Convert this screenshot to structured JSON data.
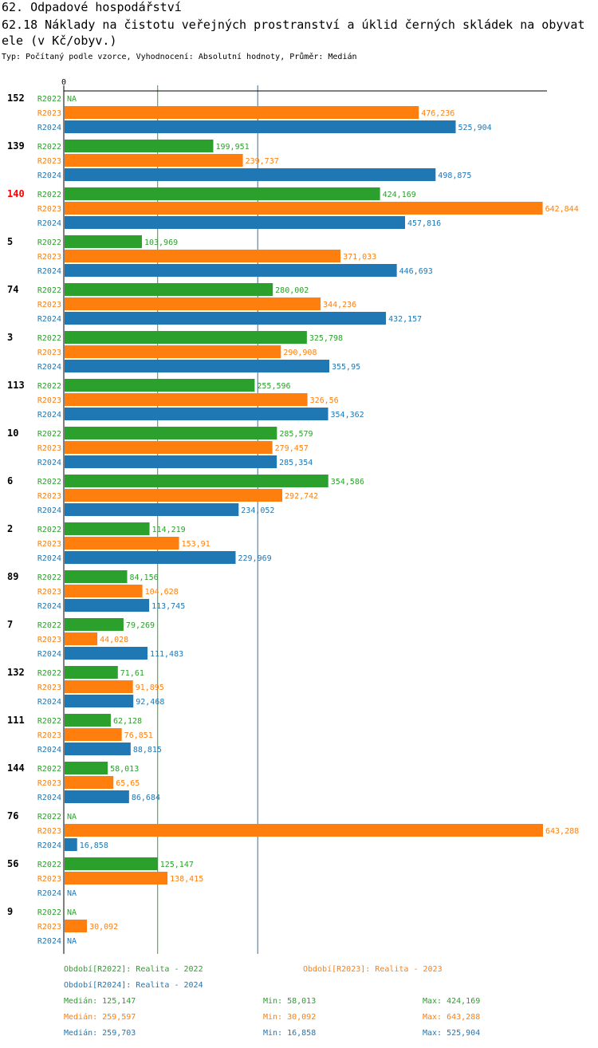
{
  "header": {
    "title1": "62. Odpadové hospodářství",
    "title2_line1": "62.18 Náklady na čistotu veřejných prostranství a úklid černých skládek na obyvat",
    "title2_line2": "ele (v Kč/obyv.)",
    "subtitle": "Typ: Počítaný podle vzorce, Vyhodnocení: Absolutní hodnoty, Průměr: Medián"
  },
  "colors": {
    "R2022": "#2ca02c",
    "R2023": "#ff7f0e",
    "R2024": "#1f77b4",
    "highlight": "#ff0000",
    "text": "#000000"
  },
  "chart_data": {
    "type": "bar",
    "orientation": "horizontal",
    "axis_zero_label": "0",
    "xlim": [
      0,
      643.288
    ],
    "na_label": "NA",
    "series_labels": [
      "R2022",
      "R2023",
      "R2024"
    ],
    "groups": [
      {
        "label": "152",
        "highlight": false,
        "values": [
          null,
          476.236,
          525.904
        ],
        "texts": [
          "NA",
          "476,236",
          "525,904"
        ]
      },
      {
        "label": "139",
        "highlight": false,
        "values": [
          199.951,
          239.737,
          498.875
        ],
        "texts": [
          "199,951",
          "239,737",
          "498,875"
        ]
      },
      {
        "label": "140",
        "highlight": true,
        "values": [
          424.169,
          642.844,
          457.816
        ],
        "texts": [
          "424,169",
          "642,844",
          "457,816"
        ]
      },
      {
        "label": "5",
        "highlight": false,
        "values": [
          103.969,
          371.033,
          446.693
        ],
        "texts": [
          "103,969",
          "371,033",
          "446,693"
        ]
      },
      {
        "label": "74",
        "highlight": false,
        "values": [
          280.002,
          344.236,
          432.157
        ],
        "texts": [
          "280,002",
          "344,236",
          "432,157"
        ]
      },
      {
        "label": "3",
        "highlight": false,
        "values": [
          325.798,
          290.908,
          355.95
        ],
        "texts": [
          "325,798",
          "290,908",
          "355,95"
        ]
      },
      {
        "label": "113",
        "highlight": false,
        "values": [
          255.596,
          326.56,
          354.362
        ],
        "texts": [
          "255,596",
          "326,56",
          "354,362"
        ]
      },
      {
        "label": "10",
        "highlight": false,
        "values": [
          285.579,
          279.457,
          285.354
        ],
        "texts": [
          "285,579",
          "279,457",
          "285,354"
        ]
      },
      {
        "label": "6",
        "highlight": false,
        "values": [
          354.586,
          292.742,
          234.052
        ],
        "texts": [
          "354,586",
          "292,742",
          "234,052"
        ]
      },
      {
        "label": "2",
        "highlight": false,
        "values": [
          114.219,
          153.91,
          229.969
        ],
        "texts": [
          "114,219",
          "153,91",
          "229,969"
        ]
      },
      {
        "label": "89",
        "highlight": false,
        "values": [
          84.156,
          104.628,
          113.745
        ],
        "texts": [
          "84,156",
          "104,628",
          "113,745"
        ]
      },
      {
        "label": "7",
        "highlight": false,
        "values": [
          79.269,
          44.028,
          111.483
        ],
        "texts": [
          "79,269",
          "44,028",
          "111,483"
        ]
      },
      {
        "label": "132",
        "highlight": false,
        "values": [
          71.61,
          91.895,
          92.468
        ],
        "texts": [
          "71,61",
          "91,895",
          "92,468"
        ]
      },
      {
        "label": "111",
        "highlight": false,
        "values": [
          62.128,
          76.851,
          88.815
        ],
        "texts": [
          "62,128",
          "76,851",
          "88,815"
        ]
      },
      {
        "label": "144",
        "highlight": false,
        "values": [
          58.013,
          65.65,
          86.684
        ],
        "texts": [
          "58,013",
          "65,65",
          "86,684"
        ]
      },
      {
        "label": "76",
        "highlight": false,
        "values": [
          null,
          643.288,
          16.858
        ],
        "texts": [
          "NA",
          "643,288",
          "16,858"
        ]
      },
      {
        "label": "56",
        "highlight": false,
        "values": [
          125.147,
          138.415,
          null
        ],
        "texts": [
          "125,147",
          "138,415",
          "NA"
        ]
      },
      {
        "label": "9",
        "highlight": false,
        "values": [
          null,
          30.092,
          null
        ],
        "texts": [
          "NA",
          "30,092",
          "NA"
        ]
      }
    ],
    "median_lines": [
      125.147,
      259.597,
      259.703
    ]
  },
  "legend": {
    "period_2022": "Období[R2022]: Realita - 2022",
    "period_2023": "Období[R2023]: Realita - 2023",
    "period_2024": "Období[R2024]: Realita - 2024",
    "stats": [
      {
        "median": "Medián: 125,147",
        "min": "Min: 58,013",
        "max": "Max: 424,169"
      },
      {
        "median": "Medián: 259,597",
        "min": "Min: 30,092",
        "max": "Max: 643,288"
      },
      {
        "median": "Medián: 259,703",
        "min": "Min: 16,858",
        "max": "Max: 525,904"
      }
    ]
  }
}
